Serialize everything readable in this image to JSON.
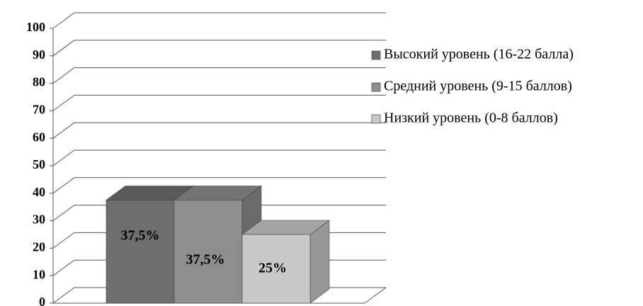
{
  "chart_data": {
    "type": "bar3d",
    "series": [
      {
        "name": "Высокий уровень (16-22 балла)",
        "color": "#6e6e6e",
        "values": [
          37.5
        ],
        "value_labels": [
          "37,5%"
        ]
      },
      {
        "name": "Средний уровень (9-15 баллов)",
        "color": "#8e8e8e",
        "values": [
          37.5
        ],
        "value_labels": [
          "37,5%"
        ]
      },
      {
        "name": "Низкий уровень (0-8 баллов)",
        "color": "#c9c9c9",
        "values": [
          25
        ],
        "value_labels": [
          "25%"
        ]
      }
    ],
    "ylim": [
      0,
      100
    ],
    "yticks": [
      0,
      10,
      20,
      30,
      40,
      50,
      60,
      70,
      80,
      90,
      100
    ],
    "grid": true,
    "legend": "right"
  }
}
